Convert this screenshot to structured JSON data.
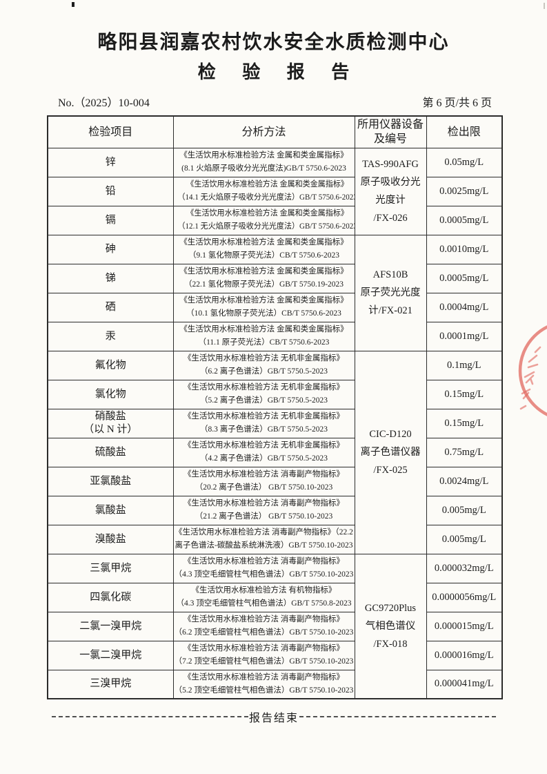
{
  "header": {
    "title": "略阳县润嘉农村饮水安全水质检测中心",
    "subtitle": "检 验 报 告",
    "report_no": "No.（2025）10-004",
    "page_info": "第 6 页/共 6 页"
  },
  "table": {
    "columns": [
      "检验项目",
      "分析方法",
      "所用仪器设备\n及编号",
      "检出限"
    ],
    "equipment_groups": [
      {
        "lines": "TAS-990AFG\n原子吸收分光\n光度计\n/FX-026",
        "row_count": 3
      },
      {
        "lines": "AFS10B\n原子荧光光度\n计/FX-021",
        "row_count": 4
      },
      {
        "lines": "CIC-D120\n离子色谱仪器\n/FX-025",
        "row_count": 7
      },
      {
        "lines": "GC9720Plus\n气相色谱仪\n/FX-018",
        "row_count": 5
      }
    ],
    "rows": [
      {
        "item": "锌",
        "method": "《生活饮用水标准检验方法 金属和类金属指标》\n(8.1 火焰原子吸收分光光度法)GB/T 5750.6-2023",
        "limit": "0.05mg/L"
      },
      {
        "item": "铅",
        "method": "《生活饮用水标准检验方法 金属和类金属指标》\n（14.1 无火焰原子吸收分光光度法）GB/T 5750.6-2023",
        "limit": "0.0025mg/L"
      },
      {
        "item": "镉",
        "method": "《生活饮用水标准检验方法 金属和类金属指标》\n（12.1 无火焰原子吸收分光光度法）GB/T 5750.6-2023",
        "limit": "0.0005mg/L"
      },
      {
        "item": "砷",
        "method": "《生活饮用水标准检验方法 金属和类金属指标》\n（9.1 氢化物原子荧光法）CB/T 5750.6-2023",
        "limit": "0.0010mg/L"
      },
      {
        "item": "锑",
        "method": "《生活饮用水标准检验方法 金属和类金属指标》\n（22.1 氢化物原子荧光法）GB/T 5750.19-2023",
        "limit": "0.0005mg/L"
      },
      {
        "item": "硒",
        "method": "《生活饮用水标准检验方法 金属和类金属指标》\n（10.1 氢化物原子荧光法）CB/T 5750.6-2023",
        "limit": "0.0004mg/L"
      },
      {
        "item": "汞",
        "method": "《生活饮用水标准检验方法 金属和类金属指标》\n（11.1 原子荧光法）CB/T 5750.6-2023",
        "limit": "0.0001mg/L"
      },
      {
        "item": "氟化物",
        "method": "《生活饮用水标准检验方法 无机非金属指标》\n（6.2 离子色谱法）GB/T 5750.5-2023",
        "limit": "0.1mg/L"
      },
      {
        "item": "氯化物",
        "method": "《生活饮用水标准检验方法 无机非金属指标》\n（5.2 离子色谱法）GB/T 5750.5-2023",
        "limit": "0.15mg/L"
      },
      {
        "item": "硝酸盐\n（以 N 计）",
        "method": "《生活饮用水标准检验方法 无机非金属指标》\n（8.3 离子色谱法）GB/T 5750.5-2023",
        "limit": "0.15mg/L"
      },
      {
        "item": "硫酸盐",
        "method": "《生活饮用水标准检验方法 无机非金属指标》\n（4.2 离子色谱法）GB/T 5750.5-2023",
        "limit": "0.75mg/L"
      },
      {
        "item": "亚氯酸盐",
        "method": "《生活饮用水标准检验方法 消毒副产物指标》\n（20.2 离子色谱法） GB/T 5750.10-2023",
        "limit": "0.0024mg/L"
      },
      {
        "item": "氯酸盐",
        "method": "《生活饮用水标准检验方法 消毒副产物指标》\n（21.2 离子色谱法） GB/T 5750.10-2023",
        "limit": "0.005mg/L"
      },
      {
        "item": "溴酸盐",
        "method": "《生活饮用水标准检验方法 消毒副产物指标》（22.2\n离子色谱法-碳酸盐系统淋洗液）GB/T 5750.10-2023",
        "limit": "0.005mg/L"
      },
      {
        "item": "三氯甲烷",
        "method": "《生活饮用水标准检验方法 消毒副产物指标》\n（4.3 顶空毛细管柱气相色谱法）GB/T 5750.10-2023",
        "limit": "0.000032mg/L"
      },
      {
        "item": "四氯化碳",
        "method": "《生活饮用水标准检验方法 有机物指标》\n（4.3 顶空毛细管柱气相色谱法）GB/T 5750.8-2023",
        "limit": "0.0000056mg/L"
      },
      {
        "item": "二氯一溴甲烷",
        "method": "《生活饮用水标准检验方法 消毒副产物指标》\n（6.2 顶空毛细管柱气相色谱法）GB/T 5750.10-2023",
        "limit": "0.000015mg/L"
      },
      {
        "item": "一氯二溴甲烷",
        "method": "《生活饮用水标准检验方法 消毒副产物指标》\n（7.2 顶空毛细管柱气相色谱法）GB/T 5750.10-2023",
        "limit": "0.000016mg/L"
      },
      {
        "item": "三溴甲烷",
        "method": "《生活饮用水标准检验方法 消毒副产物指标》\n（5.2 顶空毛细管柱气相色谱法）GB/T 5750.10-2023",
        "limit": "0.000041mg/L"
      }
    ]
  },
  "footer": {
    "end_text": "报告结束"
  },
  "colors": {
    "paper": "#fcfbf7",
    "ink": "#1c1c1c",
    "table_border": "#2b2b2b",
    "stamp_red": "#e2685f"
  }
}
